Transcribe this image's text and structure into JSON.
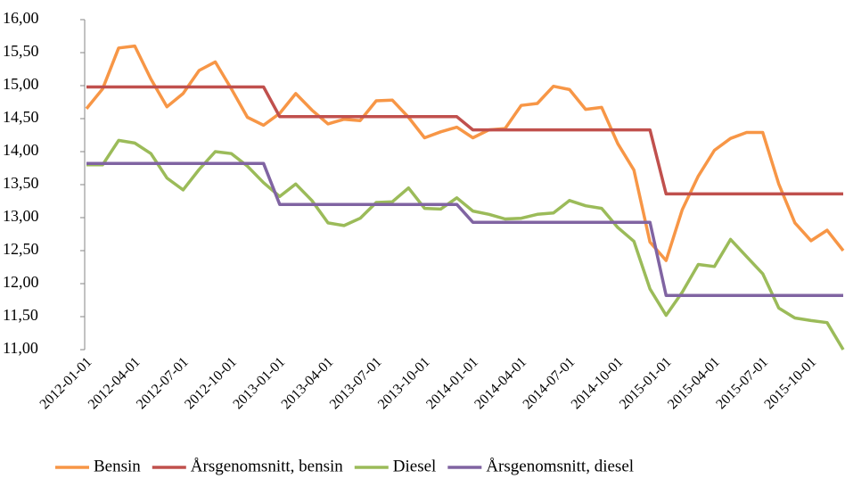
{
  "chart_data": {
    "type": "line",
    "categories": [
      "2012-01-01",
      null,
      null,
      "2012-04-01",
      null,
      null,
      "2012-07-01",
      null,
      null,
      "2012-10-01",
      null,
      null,
      "2013-01-01",
      null,
      null,
      "2013-04-01",
      null,
      null,
      "2013-07-01",
      null,
      null,
      "2013-10-01",
      null,
      null,
      "2014-01-01",
      null,
      null,
      "2014-04-01",
      null,
      null,
      "2014-07-01",
      null,
      null,
      "2014-10-01",
      null,
      null,
      "2015-01-01",
      null,
      null,
      "2015-04-01",
      null,
      null,
      "2015-07-01",
      null,
      null,
      "2015-10-01",
      null,
      null
    ],
    "series": [
      {
        "name": "Bensin",
        "color": "#f79646",
        "values": [
          14.65,
          14.95,
          15.57,
          15.6,
          15.1,
          14.68,
          14.88,
          15.23,
          15.36,
          14.95,
          14.52,
          14.4,
          14.58,
          14.88,
          14.63,
          14.42,
          14.49,
          14.47,
          14.77,
          14.78,
          14.52,
          14.21,
          14.3,
          14.37,
          14.21,
          14.33,
          14.35,
          14.7,
          14.73,
          14.99,
          14.94,
          14.64,
          14.67,
          14.12,
          13.72,
          12.63,
          12.35,
          13.12,
          13.63,
          14.02,
          14.2,
          14.29,
          14.29,
          13.51,
          12.92,
          12.65,
          12.81,
          12.5
        ]
      },
      {
        "name": "Årsgenomsnitt, bensin",
        "color": "#c0504d",
        "values": [
          14.98,
          14.98,
          14.98,
          14.98,
          14.98,
          14.98,
          14.98,
          14.98,
          14.98,
          14.98,
          14.98,
          14.98,
          14.53,
          14.53,
          14.53,
          14.53,
          14.53,
          14.53,
          14.53,
          14.53,
          14.53,
          14.53,
          14.53,
          14.53,
          14.33,
          14.33,
          14.33,
          14.33,
          14.33,
          14.33,
          14.33,
          14.33,
          14.33,
          14.33,
          14.33,
          14.33,
          13.36,
          13.36,
          13.36,
          13.36,
          13.36,
          13.36,
          13.36,
          13.36,
          13.36,
          13.36,
          13.36,
          13.36
        ]
      },
      {
        "name": "Diesel",
        "color": "#9bbb59",
        "values": [
          13.8,
          13.8,
          14.17,
          14.13,
          13.97,
          13.6,
          13.42,
          13.73,
          14.0,
          13.97,
          13.78,
          13.53,
          13.32,
          13.51,
          13.26,
          12.92,
          12.88,
          12.99,
          13.23,
          13.24,
          13.45,
          13.14,
          13.13,
          13.3,
          13.1,
          13.05,
          12.98,
          12.99,
          13.05,
          13.07,
          13.26,
          13.18,
          13.14,
          12.85,
          12.64,
          11.92,
          11.52,
          11.87,
          12.29,
          12.26,
          12.67,
          12.41,
          12.15,
          11.63,
          11.48,
          11.44,
          11.41,
          11.0
        ]
      },
      {
        "name": "Årsgenomsnitt, diesel",
        "color": "#8064a2",
        "values": [
          13.82,
          13.82,
          13.82,
          13.82,
          13.82,
          13.82,
          13.82,
          13.82,
          13.82,
          13.82,
          13.82,
          13.82,
          13.2,
          13.2,
          13.2,
          13.2,
          13.2,
          13.2,
          13.2,
          13.2,
          13.2,
          13.2,
          13.2,
          13.2,
          12.93,
          12.93,
          12.93,
          12.93,
          12.93,
          12.93,
          12.93,
          12.93,
          12.93,
          12.93,
          12.93,
          12.93,
          11.82,
          11.82,
          11.82,
          11.82,
          11.82,
          11.82,
          11.82,
          11.82,
          11.82,
          11.82,
          11.82,
          11.82
        ]
      }
    ],
    "ylim": [
      11,
      16
    ],
    "yticks": [
      {
        "value": 11,
        "label": "11,00"
      },
      {
        "value": 11.5,
        "label": "11,50"
      },
      {
        "value": 12,
        "label": "12,00"
      },
      {
        "value": 12.5,
        "label": "12,50"
      },
      {
        "value": 13,
        "label": "13,00"
      },
      {
        "value": 13.5,
        "label": "13,50"
      },
      {
        "value": 14,
        "label": "14,00"
      },
      {
        "value": 14.5,
        "label": "14,50"
      },
      {
        "value": 15,
        "label": "15,00"
      },
      {
        "value": 15.5,
        "label": "15,50"
      },
      {
        "value": 16,
        "label": "16,00"
      }
    ],
    "grid": false,
    "legend": "bottom"
  }
}
